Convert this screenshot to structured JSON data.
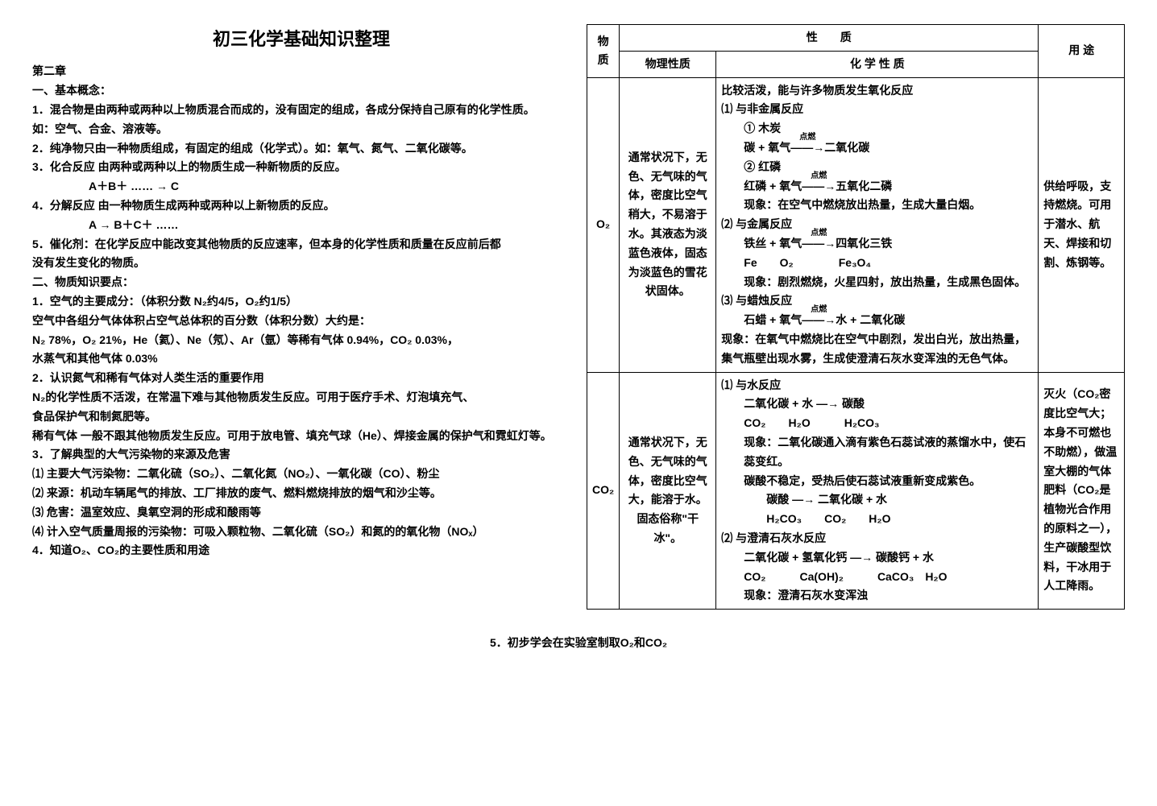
{
  "title": "初三化学基础知识整理",
  "chapter": "第二章",
  "section1_title": "一、基本概念：",
  "s1_p1": "1．混合物是由两种或两种以上物质混合而成的，没有固定的组成，各成分保持自己原有的化学性质。",
  "s1_p2": "如：空气、合金、溶液等。",
  "s1_p3": "2．纯净物只由一种物质组成，有固定的组成（化学式）。如：氧气、氮气、二氧化碳等。",
  "s1_p4": "3．化合反应  由两种或两种以上的物质生成一种新物质的反应。",
  "s1_p4f": "A＋B＋ …… → C",
  "s1_p5": "4．分解反应  由一种物质生成两种或两种以上新物质的反应。",
  "s1_p5f": "A → B＋C＋ ……",
  "s1_p6": "5．催化剂：在化学反应中能改变其他物质的反应速率，但本身的化学性质和质量在反应前后都",
  "s1_p6b": "没有发生变化的物质。",
  "section2_title": "二、物质知识要点：",
  "s2_p1": "1．空气的主要成分：（体积分数  N₂约4/5，O₂约1/5）",
  "s2_p1b": "空气中各组分气体体积占空气总体积的百分数（体积分数）大约是：",
  "s2_p1c": "N₂  78%，O₂  21%，He（氦）、Ne（氖）、Ar（氩）等稀有气体 0.94%，CO₂ 0.03%，",
  "s2_p1d": "水蒸气和其他气体  0.03%",
  "s2_p2": "2．认识氮气和稀有气体对人类生活的重要作用",
  "s2_p2b": "N₂的化学性质不活泼，在常温下难与其他物质发生反应。可用于医疗手术、灯泡填充气、",
  "s2_p2c": "食品保护气和制氮肥等。",
  "s2_p2d": "稀有气体  一般不跟其他物质发生反应。可用于放电管、填充气球（He）、焊接金属的保护气和霓虹灯等。",
  "s2_p3": "3．了解典型的大气污染物的来源及危害",
  "s2_p3a": "⑴ 主要大气污染物：二氧化硫（SO₂）、二氧化氮（NO₂）、一氧化碳（CO）、粉尘",
  "s2_p3b": "⑵ 来源：机动车辆尾气的排放、工厂排放的废气、燃料燃烧排放的烟气和沙尘等。",
  "s2_p3c": "⑶ 危害：温室效应、臭氧空洞的形成和酸雨等",
  "s2_p3d": "⑷ 计入空气质量周报的污染物：可吸入颗粒物、二氧化硫（SO₂）和氮的的氧化物（NOₓ）",
  "s2_p4": "4．知道O₂、CO₂的主要性质和用途",
  "table": {
    "header_mat": "物质",
    "header_prop": "性　　质",
    "header_phys": "物理性质",
    "header_chem": "化 学 性 质",
    "header_use": "用  途",
    "row_o2": {
      "mat": "O₂",
      "phys": "通常状况下，无色、无气味的气体，密度比空气稍大，不易溶于水。其液态为淡蓝色液体，固态为淡蓝色的雪花状固体。",
      "chem_intro": "比较活泼，能与许多物质发生氧化反应",
      "chem_1": "⑴ 与非金属反应",
      "chem_1a_lbl": "① 木炭",
      "chem_1a_eq": "碳 + 氧气 ——→ 二氧化碳",
      "chem_1a_cond": "点燃",
      "chem_1b_lbl": "② 红磷",
      "chem_1b_eq": "红磷 + 氧气 ——→ 五氧化二磷",
      "chem_1b_cond": "点燃",
      "chem_1b_obs": "现象：在空气中燃烧放出热量，生成大量白烟。",
      "chem_2": "⑵ 与金属反应",
      "chem_2a_eq": "铁丝 + 氧气 ——→ 四氧化三铁",
      "chem_2a_cond": "点燃",
      "chem_2a_sym": "Fe　　O₂　　　　Fe₃O₄",
      "chem_2a_obs": "现象：剧烈燃烧，火星四射，放出热量，生成黑色固体。",
      "chem_3": "⑶ 与蜡烛反应",
      "chem_3a_eq": "石蜡 + 氧气 ——→ 水 + 二氧化碳",
      "chem_3a_cond": "点燃",
      "chem_3a_obs": "现象：在氧气中燃烧比在空气中剧烈，发出白光，放出热量，集气瓶壁出现水雾，生成使澄清石灰水变浑浊的无色气体。",
      "use": "供给呼吸，支持燃烧。可用于潜水、航天、焊接和切割、炼钢等。"
    },
    "row_co2": {
      "mat": "CO₂",
      "phys": "通常状况下，无色、无气味的气体，密度比空气大，能溶于水。固态俗称\"干冰\"。",
      "chem_1": "⑴ 与水反应",
      "chem_1_eq": "二氧化碳 + 水 —→ 碳酸",
      "chem_1_sym": "CO₂　　H₂O　　　H₂CO₃",
      "chem_1_obs": "现象：二氧化碳通入滴有紫色石蕊试液的蒸馏水中，使石蕊变红。",
      "chem_1_note": "碳酸不稳定，受热后使石蕊试液重新变成紫色。",
      "chem_1_eq2": "碳酸 —→ 二氧化碳 + 水",
      "chem_1_sym2": "H₂CO₃　　CO₂　　H₂O",
      "chem_2": "⑵ 与澄清石灰水反应",
      "chem_2_eq": "二氧化碳 + 氢氧化钙 —→ 碳酸钙 + 水",
      "chem_2_sym": "CO₂　　　Ca(OH)₂　　　CaCO₃　H₂O",
      "chem_2_obs": "现象：澄清石灰水变浑浊",
      "use": "灭火（CO₂密度比空气大；本身不可燃也不助燃），做温室大棚的气体肥料（CO₂是植物光合作用的原料之一），生产碳酸型饮料，干冰用于人工降雨。"
    }
  },
  "footer": "5．初步学会在实验室制取O₂和CO₂"
}
